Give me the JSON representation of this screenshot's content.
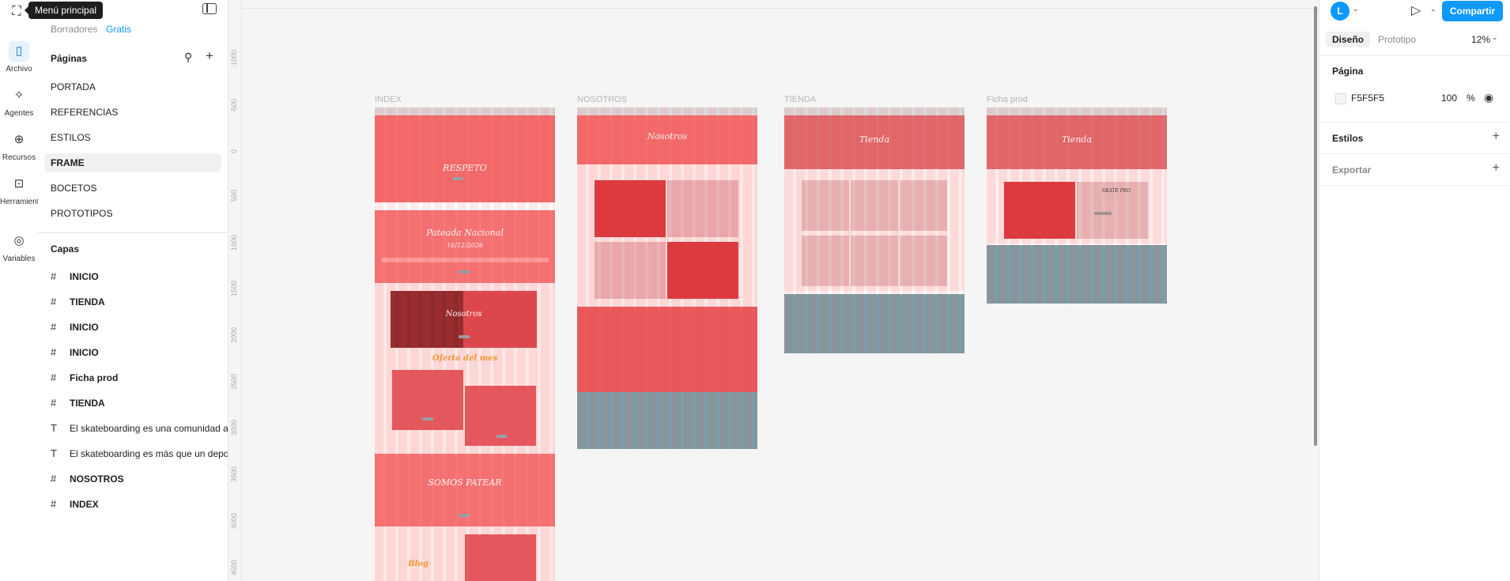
{
  "tooltip": "Menú principal",
  "rail": [
    {
      "label": "Archivo",
      "icon": "file-icon",
      "glyph": "▯",
      "active": true
    },
    {
      "label": "Agentes",
      "icon": "sparkle-icon",
      "glyph": "✧",
      "active": false
    },
    {
      "label": "Recursos",
      "icon": "plus-circle-icon",
      "glyph": "⊕",
      "active": false
    },
    {
      "label": "Herramientas",
      "icon": "toolbox-icon",
      "glyph": "⊡",
      "active": false
    },
    {
      "label": "Variables",
      "icon": "variables-icon",
      "glyph": "◎",
      "active": false
    }
  ],
  "top": {
    "drafts": "Borradores",
    "plan": "Gratis"
  },
  "pages_title": "Páginas",
  "pages": [
    "PORTADA",
    "REFERENCIAS",
    "ESTILOS",
    "FRAME",
    "BOCETOS",
    "PROTOTIPOS"
  ],
  "selected_page": "FRAME",
  "layers_title": "Capas",
  "layers": [
    {
      "type": "frame",
      "name": "INICIO"
    },
    {
      "type": "frame",
      "name": "TIENDA"
    },
    {
      "type": "frame",
      "name": "INICIO"
    },
    {
      "type": "frame",
      "name": "INICIO"
    },
    {
      "type": "frame",
      "name": "Ficha prod"
    },
    {
      "type": "frame",
      "name": "TIENDA"
    },
    {
      "type": "text",
      "name": "El skateboarding es una comunidad ap"
    },
    {
      "type": "text",
      "name": "El skateboarding es más que un depor"
    },
    {
      "type": "frame",
      "name": "NOSOTROS"
    },
    {
      "type": "frame",
      "name": "INDEX"
    }
  ],
  "ruler_ticks": [
    "-1000",
    "-500",
    "0",
    "500",
    "1000",
    "1500",
    "2000",
    "2500",
    "3000",
    "3500",
    "4000",
    "4500"
  ],
  "canvas_frames": {
    "index": {
      "label": "INDEX",
      "hero": "RESPETO",
      "event_title": "Pateada Nacional",
      "event_date": "16/12/2026",
      "about": "Nosotros",
      "offer": "Oferta   del mes",
      "community": "SOMOS PATEAR",
      "blog": "Blog"
    },
    "nosotros": {
      "label": "NOSOTROS",
      "hero": "Nosotros"
    },
    "tienda": {
      "label": "TIENDA",
      "hero": "Tienda"
    },
    "ficha": {
      "label": "Ficha prod",
      "hero": "Tienda",
      "product": "SKATE PRO"
    }
  },
  "right": {
    "avatar": "L",
    "share": "Compartir",
    "tab_design": "Diseño",
    "tab_prototype": "Prototipo",
    "zoom": "12%",
    "page_section": "Página",
    "page_color": "F5F5F5",
    "page_opacity": "100",
    "percent": "%",
    "styles": "Estilos",
    "export": "Exportar"
  },
  "colors": {
    "accent": "#0d99ff",
    "canvas": "#f5f5f5",
    "frame_red": "#f26d6d",
    "frame_teal": "#7a9fa8"
  }
}
